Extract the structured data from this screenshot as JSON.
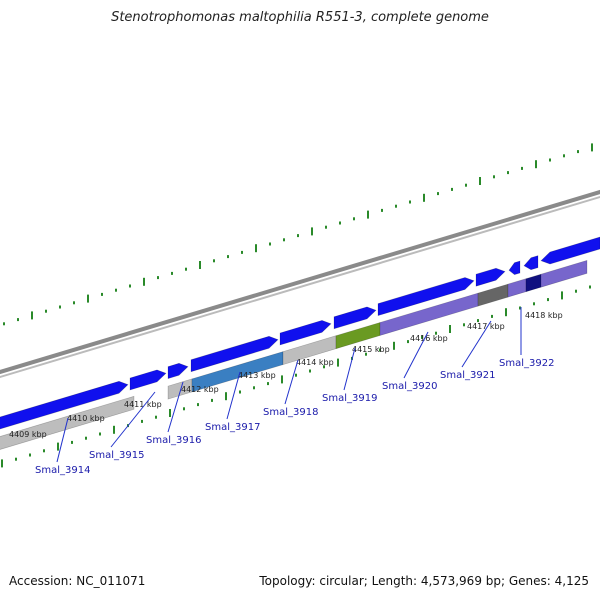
{
  "title": "Stenotrophomonas maltophilia R551-3, complete genome",
  "footer": {
    "accession": "Accession: NC_011071",
    "summary": "Topology: circular; Length: 4,573,969 bp; Genes: 4,125"
  },
  "colors": {
    "gene_blue": "#1010ee",
    "backbone_gray": "#8a8a8a",
    "tick_green": "#2a8a2a",
    "tick_label": "#222222",
    "gene_label": "#1a1aaa",
    "feature_gray": "#bdbdbd",
    "feature_steelblue": "#3a7fc2",
    "feature_olive": "#6a9a22",
    "feature_purple": "#7766cc",
    "feature_darkgray": "#666666",
    "feature_navy": "#101080"
  },
  "ticks": [
    "4409 kbp",
    "4410 kbp",
    "4411 kbp",
    "4412 kbp",
    "4413 kbp",
    "4414 kbp",
    "4415 kbp",
    "4416 kbp",
    "4417 kbp",
    "4418 kbp"
  ],
  "gene_labels": [
    "Smal_3914",
    "Smal_3915",
    "Smal_3916",
    "Smal_3917",
    "Smal_3918",
    "Smal_3919",
    "Smal_3920",
    "Smal_3921",
    "Smal_3922"
  ]
}
